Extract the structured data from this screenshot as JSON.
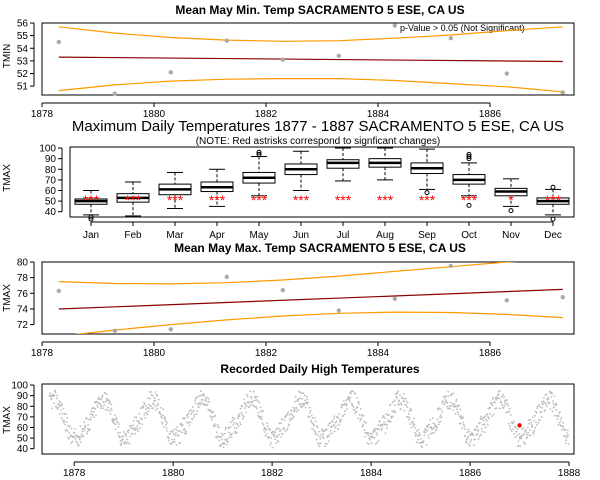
{
  "colors": {
    "trend": "#8b0000",
    "ci": "#ff9900",
    "points": "#aaaaaa",
    "recorded": "#bbbbbb",
    "highlight": "#ff0000",
    "significance": "#ff0000"
  },
  "chart_data": [
    {
      "type": "scatter",
      "title": "Mean May Min. Temp SACRAMENTO 5 ESE, CA US",
      "ylabel": "TMIN",
      "xlim": [
        1878,
        1887.5
      ],
      "ylim": [
        50.3,
        56
      ],
      "xticks": [
        1878,
        1880,
        1882,
        1884,
        1886
      ],
      "yticks": [
        51,
        52,
        53,
        54,
        55,
        56
      ],
      "annotation": "p-Value > 0.05 (Not Significant)",
      "points": [
        [
          1878.3,
          54.5
        ],
        [
          1879.3,
          50.4
        ],
        [
          1880.3,
          52.1
        ],
        [
          1881.3,
          54.6
        ],
        [
          1882.3,
          53.1
        ],
        [
          1883.3,
          53.4
        ],
        [
          1884.3,
          55.8
        ],
        [
          1885.3,
          54.8
        ],
        [
          1886.3,
          52.0
        ],
        [
          1887.3,
          50.5
        ]
      ],
      "trend": [
        [
          1878.3,
          53.3
        ],
        [
          1887.3,
          52.95
        ]
      ],
      "ci_upper": [
        [
          1878.3,
          55.7
        ],
        [
          1879.3,
          55.2
        ],
        [
          1880.3,
          54.85
        ],
        [
          1881.3,
          54.65
        ],
        [
          1882.3,
          54.55
        ],
        [
          1883.3,
          54.6
        ],
        [
          1884.3,
          54.8
        ],
        [
          1885.3,
          55.05
        ],
        [
          1886.3,
          55.4
        ],
        [
          1887.3,
          55.7
        ]
      ],
      "ci_lower": [
        [
          1878.3,
          50.65
        ],
        [
          1879.3,
          51.1
        ],
        [
          1880.3,
          51.4
        ],
        [
          1881.3,
          51.55
        ],
        [
          1882.3,
          51.6
        ],
        [
          1883.3,
          51.6
        ],
        [
          1884.3,
          51.45
        ],
        [
          1885.3,
          51.2
        ],
        [
          1886.3,
          50.95
        ],
        [
          1887.3,
          50.55
        ]
      ]
    },
    {
      "type": "box",
      "title": "Maximum Daily Temperatures 1877 - 1887 SACRAMENTO 5 ESE, CA US",
      "subtitle": "(NOTE: Red astrisks correspond to signficant changes)",
      "ylabel": "TMAX",
      "ylim": [
        35,
        101
      ],
      "yticks": [
        40,
        50,
        60,
        70,
        80,
        90,
        100
      ],
      "categories": [
        "Jan",
        "Feb",
        "Mar",
        "Apr",
        "May",
        "Jun",
        "Jul",
        "Aug",
        "Sep",
        "Oct",
        "Nov",
        "Dec"
      ],
      "boxes": [
        {
          "min": 37,
          "q1": 47,
          "median": 50,
          "q3": 52,
          "max": 60,
          "outliers": [
            33,
            35
          ]
        },
        {
          "min": 36,
          "q1": 49,
          "median": 53,
          "q3": 57,
          "max": 68,
          "outliers": []
        },
        {
          "min": 43,
          "q1": 56,
          "median": 61,
          "q3": 66,
          "max": 77,
          "outliers": []
        },
        {
          "min": 45,
          "q1": 59,
          "median": 63,
          "q3": 68,
          "max": 80,
          "outliers": []
        },
        {
          "min": 55,
          "q1": 67,
          "median": 72,
          "q3": 77,
          "max": 92,
          "outliers": [
            94,
            96
          ]
        },
        {
          "min": 60,
          "q1": 75,
          "median": 80,
          "q3": 85,
          "max": 97,
          "outliers": []
        },
        {
          "min": 69,
          "q1": 81,
          "median": 86,
          "q3": 89,
          "max": 100,
          "outliers": []
        },
        {
          "min": 70,
          "q1": 82,
          "median": 86,
          "q3": 90,
          "max": 100,
          "outliers": []
        },
        {
          "min": 61,
          "q1": 76,
          "median": 81,
          "q3": 86,
          "max": 99,
          "outliers": [
            58
          ]
        },
        {
          "min": 55,
          "q1": 66,
          "median": 70,
          "q3": 75,
          "max": 86,
          "outliers": [
            46,
            90,
            92,
            94
          ]
        },
        {
          "min": 45,
          "q1": 55,
          "median": 59,
          "q3": 62,
          "max": 71,
          "outliers": [
            41
          ]
        },
        {
          "min": 37,
          "q1": 47,
          "median": 50,
          "q3": 53,
          "max": 61,
          "outliers": [
            33,
            63
          ]
        }
      ],
      "significant": [
        true,
        true,
        true,
        true,
        true,
        true,
        true,
        true,
        true,
        true,
        true,
        true
      ],
      "significance_marks": [
        "***",
        "***",
        "***",
        "***",
        "***",
        "***",
        "***",
        "***",
        "***",
        "***",
        "*",
        "***"
      ]
    },
    {
      "type": "scatter",
      "title": "Mean May Max. Temp SACRAMENTO 5 ESE, CA US",
      "ylabel": "TMAX",
      "xlim": [
        1878,
        1887.5
      ],
      "ylim": [
        70.8,
        80
      ],
      "xticks": [
        1878,
        1880,
        1882,
        1884,
        1886
      ],
      "yticks": [
        72,
        74,
        76,
        78,
        80
      ],
      "points": [
        [
          1878.3,
          76.3
        ],
        [
          1879.3,
          71.2
        ],
        [
          1880.3,
          71.4
        ],
        [
          1881.3,
          78.1
        ],
        [
          1882.3,
          76.4
        ],
        [
          1883.3,
          73.8
        ],
        [
          1884.3,
          75.3
        ],
        [
          1885.3,
          79.5
        ],
        [
          1886.3,
          75.1
        ],
        [
          1887.3,
          75.5
        ]
      ],
      "trend": [
        [
          1878.3,
          74.0
        ],
        [
          1887.3,
          76.5
        ]
      ],
      "ci_upper": [
        [
          1878.3,
          77.5
        ],
        [
          1879.3,
          77.25
        ],
        [
          1880.3,
          77.2
        ],
        [
          1881.3,
          77.35
        ],
        [
          1882.3,
          77.7
        ],
        [
          1883.3,
          78.2
        ],
        [
          1884.3,
          78.8
        ],
        [
          1885.3,
          79.4
        ],
        [
          1886.3,
          80.0
        ],
        [
          1887.3,
          80.4
        ]
      ],
      "ci_lower": [
        [
          1878.3,
          70.5
        ],
        [
          1879.3,
          71.3
        ],
        [
          1880.3,
          72.0
        ],
        [
          1881.3,
          72.6
        ],
        [
          1882.3,
          73.1
        ],
        [
          1883.3,
          73.45
        ],
        [
          1884.3,
          73.6
        ],
        [
          1885.3,
          73.55
        ],
        [
          1886.3,
          73.3
        ],
        [
          1887.3,
          72.9
        ]
      ]
    },
    {
      "type": "scatter",
      "title": "Recorded Daily High Temperatures",
      "ylabel": "TMAX",
      "xlim": [
        1877.35,
        1888.1
      ],
      "ylim": [
        35,
        101
      ],
      "xticks": [
        1878,
        1880,
        1882,
        1884,
        1886,
        1888
      ],
      "yticks": [
        40,
        50,
        60,
        70,
        80,
        90,
        100
      ],
      "series_description_start": 1877.5,
      "series_description_end": 1888.0,
      "monthly_mean": [
        50,
        53,
        61,
        63,
        72,
        80,
        86,
        86,
        81,
        70,
        59,
        50
      ],
      "highlight": [
        1887.0,
        62
      ]
    }
  ]
}
